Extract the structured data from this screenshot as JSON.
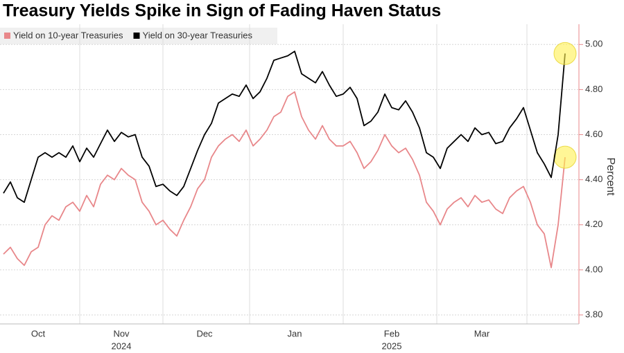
{
  "chart_data": {
    "type": "line",
    "title": "Treasury Yields Spike in Sign of Fading Haven Status",
    "y_label": "Percent",
    "categories": [
      null,
      null,
      null,
      null,
      null,
      "Oct",
      null,
      null,
      null,
      null,
      null,
      null,
      null,
      null,
      null,
      null,
      null,
      "Nov",
      null,
      null,
      null,
      null,
      null,
      null,
      null,
      null,
      null,
      null,
      null,
      "Dec",
      null,
      null,
      null,
      null,
      null,
      null,
      null,
      null,
      null,
      null,
      null,
      null,
      "Jan",
      null,
      null,
      null,
      null,
      null,
      null,
      null,
      null,
      null,
      null,
      null,
      null,
      null,
      "Feb",
      null,
      null,
      null,
      null,
      null,
      null,
      null,
      null,
      null,
      null,
      null,
      null,
      "Mar",
      null,
      null,
      null,
      null,
      null,
      null,
      null,
      null,
      null,
      null,
      null,
      null
    ],
    "years": [
      null,
      null,
      null,
      null,
      null,
      null,
      null,
      null,
      null,
      null,
      null,
      null,
      null,
      null,
      null,
      null,
      null,
      "2024",
      null,
      null,
      null,
      null,
      null,
      null,
      null,
      null,
      null,
      null,
      null,
      null,
      null,
      null,
      null,
      null,
      null,
      null,
      null,
      null,
      null,
      null,
      null,
      null,
      null,
      null,
      null,
      null,
      null,
      null,
      null,
      null,
      null,
      null,
      null,
      null,
      null,
      null,
      "2025",
      null,
      null,
      null,
      null,
      null,
      null,
      null,
      null,
      null,
      null,
      null,
      null,
      null,
      null,
      null,
      null,
      null,
      null,
      null,
      null,
      null,
      null,
      null,
      null,
      null
    ],
    "series": [
      {
        "name": "Yield on 10-year Treasuries",
        "color": "#e8878a",
        "highlight_last": true,
        "values": [
          4.07,
          4.1,
          4.05,
          4.02,
          4.08,
          4.1,
          4.2,
          4.24,
          4.22,
          4.28,
          4.3,
          4.26,
          4.33,
          4.28,
          4.38,
          4.42,
          4.4,
          4.45,
          4.42,
          4.4,
          4.3,
          4.26,
          4.2,
          4.22,
          4.18,
          4.15,
          4.22,
          4.28,
          4.36,
          4.4,
          4.5,
          4.55,
          4.58,
          4.6,
          4.57,
          4.62,
          4.55,
          4.58,
          4.62,
          4.68,
          4.7,
          4.77,
          4.79,
          4.68,
          4.62,
          4.58,
          4.64,
          4.58,
          4.55,
          4.55,
          4.57,
          4.52,
          4.45,
          4.48,
          4.53,
          4.6,
          4.55,
          4.52,
          4.54,
          4.49,
          4.42,
          4.3,
          4.26,
          4.2,
          4.27,
          4.3,
          4.32,
          4.28,
          4.33,
          4.3,
          4.31,
          4.27,
          4.25,
          4.32,
          4.35,
          4.37,
          4.3,
          4.2,
          4.16,
          4.01,
          4.2,
          4.5
        ]
      },
      {
        "name": "Yield on 30-year Treasuries",
        "color": "#000000",
        "highlight_last": true,
        "values": [
          4.34,
          4.39,
          4.32,
          4.3,
          4.4,
          4.5,
          4.52,
          4.5,
          4.52,
          4.5,
          4.55,
          4.48,
          4.54,
          4.5,
          4.56,
          4.62,
          4.57,
          4.61,
          4.59,
          4.6,
          4.5,
          4.46,
          4.37,
          4.38,
          4.35,
          4.33,
          4.37,
          4.45,
          4.53,
          4.6,
          4.65,
          4.74,
          4.76,
          4.78,
          4.77,
          4.82,
          4.76,
          4.79,
          4.85,
          4.93,
          4.94,
          4.95,
          4.97,
          4.87,
          4.85,
          4.83,
          4.88,
          4.82,
          4.77,
          4.78,
          4.81,
          4.76,
          4.64,
          4.66,
          4.7,
          4.78,
          4.72,
          4.71,
          4.75,
          4.7,
          4.63,
          4.52,
          4.5,
          4.45,
          4.54,
          4.57,
          4.6,
          4.57,
          4.63,
          4.6,
          4.61,
          4.56,
          4.57,
          4.63,
          4.67,
          4.72,
          4.62,
          4.52,
          4.47,
          4.41,
          4.6,
          4.96
        ]
      }
    ],
    "ylim": [
      3.76,
      5.09
    ],
    "yticks": [
      {
        "value": 3.8,
        "label": "3.80"
      },
      {
        "value": 4.0,
        "label": "4.00"
      },
      {
        "value": 4.2,
        "label": "4.20"
      },
      {
        "value": 4.4,
        "label": "4.40"
      },
      {
        "value": 4.6,
        "label": "4.60"
      },
      {
        "value": 4.8,
        "label": "4.80"
      },
      {
        "value": 5.0,
        "label": "5.00"
      }
    ],
    "grid": true,
    "legend": "top-left"
  }
}
